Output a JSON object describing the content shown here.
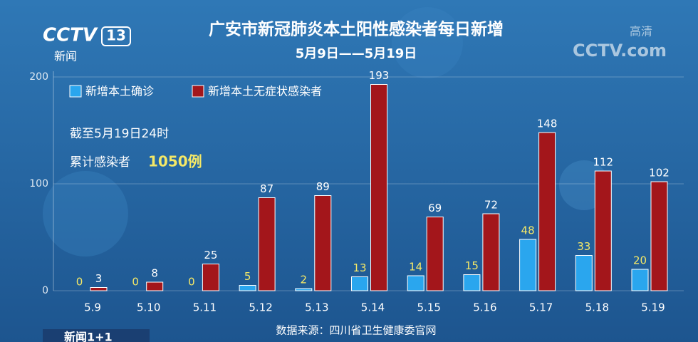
{
  "chart_data": {
    "type": "bar",
    "title": "广安市新冠肺炎本土阳性感染者每日新增",
    "subtitle": "5月9日——5月19日",
    "categories": [
      "5.9",
      "5.10",
      "5.11",
      "5.12",
      "5.13",
      "5.14",
      "5.15",
      "5.16",
      "5.17",
      "5.18",
      "5.19"
    ],
    "series": [
      {
        "name": "新增本土确诊",
        "color": "#2aa6ee",
        "values": [
          0,
          0,
          0,
          5,
          2,
          13,
          14,
          15,
          48,
          33,
          20
        ]
      },
      {
        "name": "新增本土无症状感染者",
        "color": "#a3161b",
        "values": [
          3,
          8,
          25,
          87,
          89,
          193,
          69,
          72,
          148,
          112,
          102
        ]
      }
    ],
    "ylim": [
      0,
      200
    ],
    "yticks": [
      0,
      100,
      200
    ],
    "grid": true,
    "legend": "top-left",
    "annotations": [
      "截至5月19日24时",
      "累计感染者",
      "1050例"
    ],
    "source": "数据来源：四川省卫生健康委官网"
  },
  "overlay": {
    "channel": "CCTV",
    "channel_number": "13",
    "channel_name": "新闻",
    "watermark": "CCTV.com",
    "quality": "高清",
    "program": "新闻1+1"
  }
}
